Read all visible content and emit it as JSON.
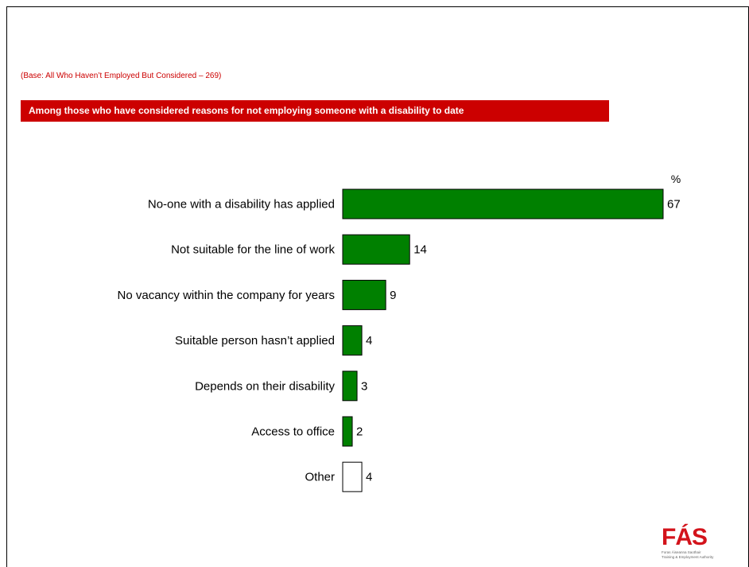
{
  "base_note": "(Base: All Who Haven’t Employed But Considered – 269)",
  "title": "Among those who have considered reasons for not employing someone with a disability to date",
  "logo": {
    "mark": "FÁS",
    "line1": "Foras Áiseanna Saothair",
    "line2": "Training & Employment Authority"
  },
  "chart_data": {
    "type": "bar",
    "orientation": "horizontal",
    "unit_label": "%",
    "categories": [
      "No-one with a disability has applied",
      "Not suitable for the line of work",
      "No vacancy within the company for years",
      "Suitable person hasn’t applied",
      "Depends on their disability",
      "Access to office",
      "Other"
    ],
    "values": [
      67,
      14,
      9,
      4,
      3,
      2,
      4
    ],
    "bar_colors": [
      "#008000",
      "#008000",
      "#008000",
      "#008000",
      "#008000",
      "#008000",
      "#ffffff"
    ],
    "xlim": [
      0,
      67
    ],
    "grid": false
  }
}
